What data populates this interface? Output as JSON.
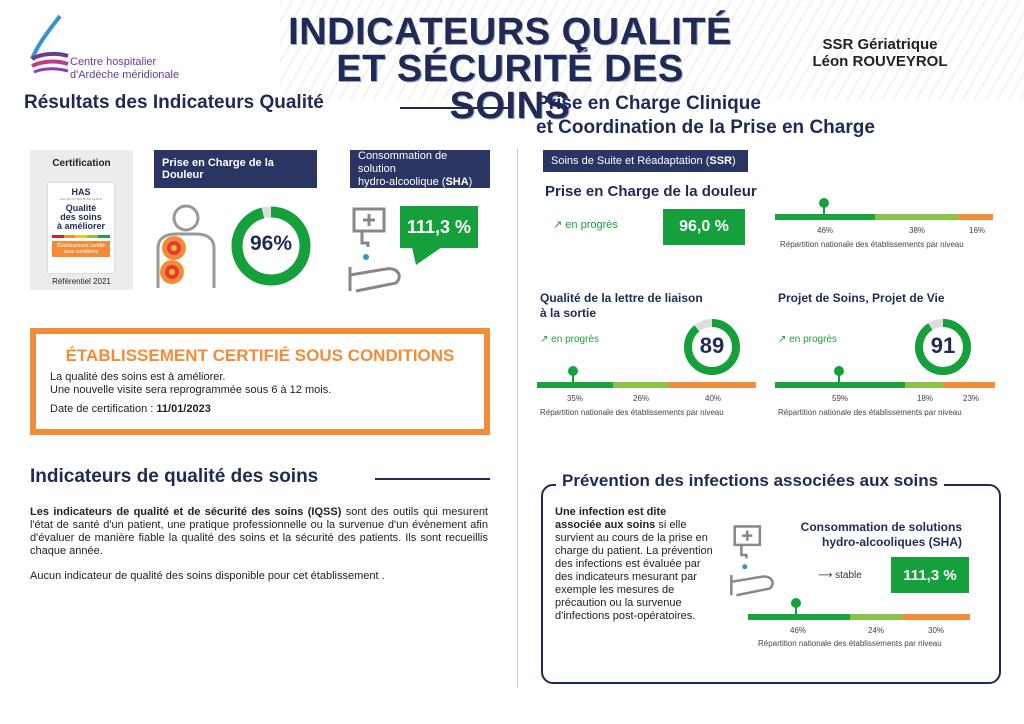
{
  "header": {
    "logo_line1": "Centre hospitalier",
    "logo_line2": "d'Ardèche méridionale",
    "title_line1": "INDICATEURS QUALITÉ",
    "title_line2": "ET SÉCURITÉ DES SOINS",
    "site_line1": "SSR Gériatrique",
    "site_line2": "Léon ROUVEYROL"
  },
  "left": {
    "section_title": "Résultats des Indicateurs Qualité",
    "certification": {
      "label": "Certification",
      "has_logo": "HAS",
      "has_small": "HAUTE AUTORITÉ DE SANTÉ",
      "badge_line1": "Qualité",
      "badge_line2": "des soins",
      "badge_line3": "à améliorer",
      "badge_status1": "Établissement certifié",
      "badge_status2": "sous conditions",
      "referentiel": "Référentiel 2021"
    },
    "douleur": {
      "title": "Prise en Charge de la Douleur",
      "value": "96%",
      "value_num": 96
    },
    "sha": {
      "title_line1": "Consommation de solution",
      "title_line2": "hydro-alcoolique (",
      "title_bold": "SHA",
      "title_end": ")",
      "value": "111,3 %"
    },
    "certified_box": {
      "title": "ÉTABLISSEMENT CERTIFIÉ SOUS CONDITIONS",
      "line1": "La qualité des soins est à améliorer.",
      "line2": "Une nouvelle visite sera reprogrammée sous 6 à 12 mois.",
      "date_label": "Date de certification : ",
      "date_value": "11/01/2023"
    },
    "iqss": {
      "title": "Indicateurs de qualité des soins",
      "para_bold": "Les indicateurs de qualité et de sécurité des soins (IQSS)",
      "para_rest": " sont des outils qui mesurent l'état de santé d'un patient, une pratique professionnelle ou la survenue d'un évènement afin d'évaluer de manière fiable la qualité des soins et la sécurité des patients. Ils sont recueillis chaque année.",
      "none": "Aucun indicateur de qualité des soins disponible pour cet établissement ."
    }
  },
  "right": {
    "section_title_line1": "Prise en Charge Clinique",
    "section_title_line2": "et Coordination de la Prise en Charge",
    "ssr_tag": "Soins de Suite et Réadaptation (",
    "ssr_bold": "SSR",
    "ssr_end": ")",
    "douleur": {
      "title": "Prise en Charge de la douleur",
      "trend": "en progrès",
      "value": "96,0 %",
      "dist": [
        "46%",
        "38%",
        "16%"
      ],
      "dist_values": [
        46,
        38,
        16
      ],
      "dist_caption": "Répartition nationale des établissements par niveau"
    },
    "lettre": {
      "title_line1": "Qualité de la lettre de liaison",
      "title_line2": "à la sortie",
      "trend": "en progrès",
      "value": "89",
      "value_num": 89,
      "dist": [
        "35%",
        "26%",
        "40%"
      ],
      "dist_values": [
        35,
        26,
        40
      ],
      "dist_caption": "Répartition nationale des établissements par niveau"
    },
    "projet": {
      "title": "Projet de Soins, Projet de Vie",
      "trend": "en progrès",
      "value": "91",
      "value_num": 91,
      "dist": [
        "59%",
        "18%",
        "23%"
      ],
      "dist_values": [
        59,
        18,
        23
      ],
      "dist_caption": "Répartition nationale des établissements par niveau"
    },
    "infections": {
      "title": "Prévention des infections associées aux soins",
      "def_bold1": "Une infection est dite",
      "def_bold2": "associée aux soins",
      "def_rest": " si elle survient au cours de la prise en charge du patient. La prévention des infections est évaluée par des indicateurs mesurant par exemple les mesures de précaution ou la survenue d'infections post-opératoires.",
      "sha_title_line1": "Consommation de solutions",
      "sha_title_line2": "hydro-alcooliques (SHA)",
      "trend": "stable",
      "value": "111,3 %",
      "dist": [
        "46%",
        "24%",
        "30%"
      ],
      "dist_values": [
        46,
        24,
        30
      ],
      "dist_caption": "Répartition nationale des établissements par niveau"
    }
  },
  "colors": {
    "navy": "#1f2a55",
    "green": "#16a03c",
    "lightgreen": "#8bc34a",
    "orange": "#f28c38",
    "purple": "#6a3d8f"
  }
}
